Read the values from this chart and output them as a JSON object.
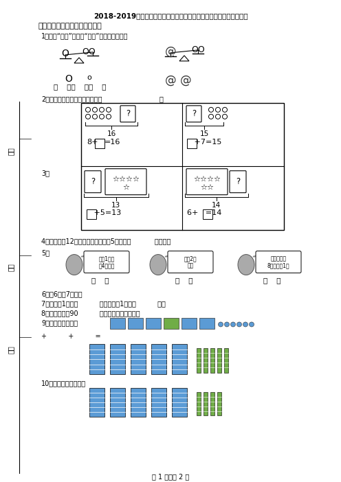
{
  "title": "2018-2019年重庆市大足区弥陀小学一年级上册数学期末总复习无答案",
  "section1_title": "一、想一想，填一填（填空题）",
  "q1": "1．哪个“最重”，哪个“最轻”，演在括号里。",
  "q2": "2．计数器上千位上一个珠子表示",
  "q4": "4．约好了有12人来踢球，已经来了5人，还有           人没来。",
  "q5_sq1": "我朇1个十\n和4个一。",
  "q5_sq2": "我朇2个\n十。",
  "q5_sq3": "我的个位是\n8，十位是1。",
  "q6": "6．从6数起7个数是",
  "q7": "7．分针走1小格是          秒，刻针走1大格是          秒。",
  "q8": "8．看一场电弖90          ，做一次深呼吸大约？",
  "q9": "9．一共有多少个？",
  "q9_note": "+          +          =",
  "q10": "10．数一数，再填空：",
  "page": "第 1 页，共 2 页",
  "background": "#ffffff",
  "text_color": "#000000"
}
